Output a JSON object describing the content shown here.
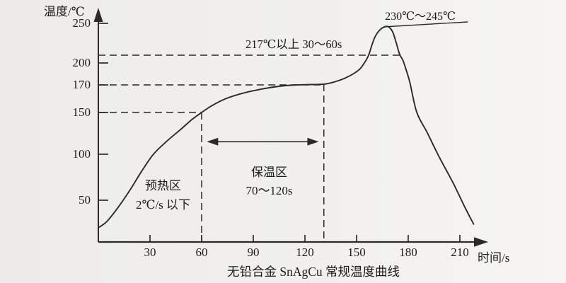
{
  "figure": {
    "kind": "scanned reflow soldering temperature profile",
    "paper_color": "#f1f0ec",
    "ink_color": "#2b2a27"
  },
  "chart_data": {
    "type": "line",
    "title": "无铅合金 SnAgCu 常规温度曲线",
    "xlabel": "时间/s",
    "ylabel": "温度/℃",
    "xlim": [
      0,
      225
    ],
    "ylim": [
      0,
      265
    ],
    "x_ticks": [
      30,
      60,
      90,
      120,
      150,
      180,
      210
    ],
    "y_ticks": [
      250,
      200,
      170,
      150,
      100,
      50
    ],
    "grid": false,
    "legend": null,
    "series": [
      {
        "name": "reflow-profile",
        "points": [
          [
            0,
            20
          ],
          [
            5,
            27
          ],
          [
            11,
            41
          ],
          [
            18,
            60
          ],
          [
            25,
            81
          ],
          [
            32,
            100
          ],
          [
            40,
            116
          ],
          [
            48,
            130
          ],
          [
            54,
            141
          ],
          [
            60,
            150
          ],
          [
            66,
            155
          ],
          [
            74,
            160
          ],
          [
            84,
            164
          ],
          [
            95,
            167
          ],
          [
            105,
            169
          ],
          [
            115,
            170
          ],
          [
            123,
            170.5
          ],
          [
            131,
            171
          ],
          [
            137,
            174
          ],
          [
            143,
            179
          ],
          [
            148,
            185
          ],
          [
            152,
            192
          ],
          [
            155,
            203
          ],
          [
            157,
            217
          ],
          [
            159,
            228
          ],
          [
            161,
            237
          ],
          [
            164,
            244
          ],
          [
            166.5,
            246.5
          ],
          [
            168.5,
            246.5
          ],
          [
            171,
            241
          ],
          [
            173,
            230
          ],
          [
            175,
            218
          ],
          [
            177,
            205
          ],
          [
            179,
            189
          ],
          [
            181,
            173
          ],
          [
            185,
            150
          ],
          [
            191,
            126
          ],
          [
            198,
            97
          ],
          [
            206,
            69
          ],
          [
            213,
            42
          ],
          [
            218,
            24
          ]
        ]
      }
    ],
    "guides": [
      {
        "temp_c": 150,
        "t_end_s": 60
      },
      {
        "temp_c": 170,
        "t_end_s": 131
      },
      {
        "temp_c": 217,
        "t_end_s": 175.5
      }
    ],
    "soak_window_s": [
      60,
      131
    ],
    "soak_arrow": {
      "t_start_s": 63,
      "t_end_s": 128,
      "temp_c": 115
    },
    "annotations": {
      "peak_range": "230℃～245℃",
      "time_above_liquidus": "217℃以上 30～60s",
      "preheat_zone": [
        "预热区",
        "2℃/s 以下"
      ],
      "soak_zone": [
        "保温区",
        "70～120s"
      ]
    }
  }
}
